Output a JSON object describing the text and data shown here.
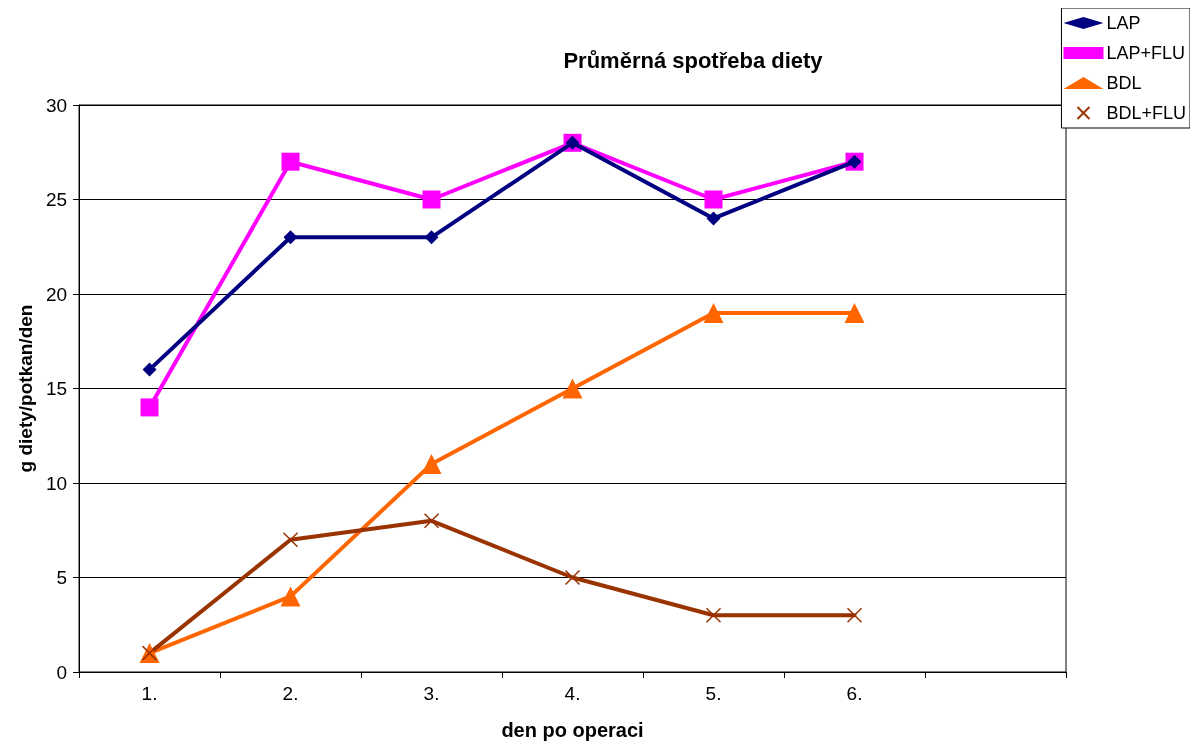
{
  "chart_data": {
    "type": "line",
    "title": "Průměrná spotřeba diety",
    "xlabel": "den po operaci",
    "ylabel": "g diety/potkan/den",
    "categories": [
      "1.",
      "2.",
      "3.",
      "4.",
      "5.",
      "6.",
      null
    ],
    "ylim": [
      0,
      30
    ],
    "yticks": [
      0,
      5,
      10,
      15,
      20,
      25,
      30
    ],
    "grid": "y",
    "legend": "top right",
    "line_style": "solid",
    "series": [
      {
        "name": "LAP",
        "color": "#000080",
        "marker": "diamond",
        "values": [
          16,
          23,
          23,
          28,
          24,
          27,
          null
        ]
      },
      {
        "name": "LAP+FLU",
        "color": "#ff00ff",
        "marker": "square",
        "values": [
          14,
          27,
          25,
          28,
          25,
          27,
          null
        ]
      },
      {
        "name": "BDL",
        "color": "#ff6600",
        "marker": "triangle",
        "values": [
          1,
          4,
          11,
          15,
          19,
          19,
          null
        ]
      },
      {
        "name": "BDL+FLU",
        "color": "#993300",
        "marker": "cross",
        "values": [
          1,
          7,
          8,
          5,
          3,
          3,
          null
        ]
      }
    ]
  }
}
